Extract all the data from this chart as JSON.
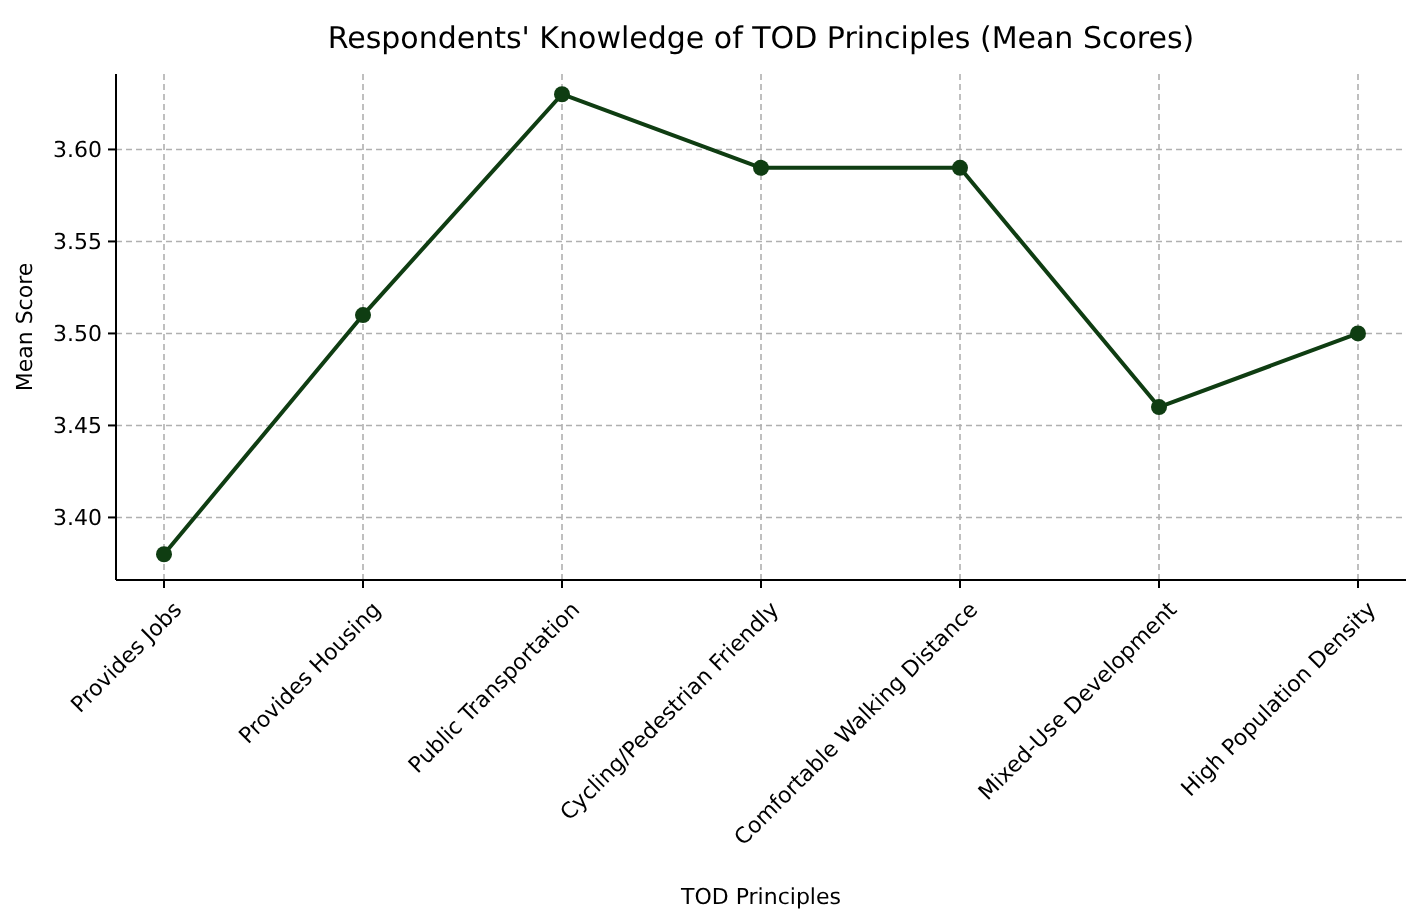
{
  "chart_data": {
    "type": "line",
    "title": "Respondents' Knowledge of TOD Principles (Mean Scores)",
    "xlabel": "TOD Principles",
    "ylabel": "Mean Score",
    "categories": [
      "Provides Jobs",
      "Provides Housing",
      "Public Transportation",
      "Cycling/Pedestrian Friendly",
      "Comfortable Walking Distance",
      "Mixed-Use Development",
      "High Population Density"
    ],
    "series": [
      {
        "color": "#0f3d12",
        "values": [
          3.38,
          3.51,
          3.63,
          3.59,
          3.59,
          3.46,
          3.5
        ]
      }
    ],
    "ylim": [
      3.366,
      3.641
    ],
    "yticks": [
      {
        "value": 3.4,
        "label": "3.40"
      },
      {
        "value": 3.45,
        "label": "3.45"
      },
      {
        "value": 3.5,
        "label": "3.50"
      },
      {
        "value": 3.55,
        "label": "3.55"
      },
      {
        "value": 3.6,
        "label": "3.60"
      }
    ],
    "grid": true,
    "marker": "circle",
    "line_style": "solid"
  }
}
